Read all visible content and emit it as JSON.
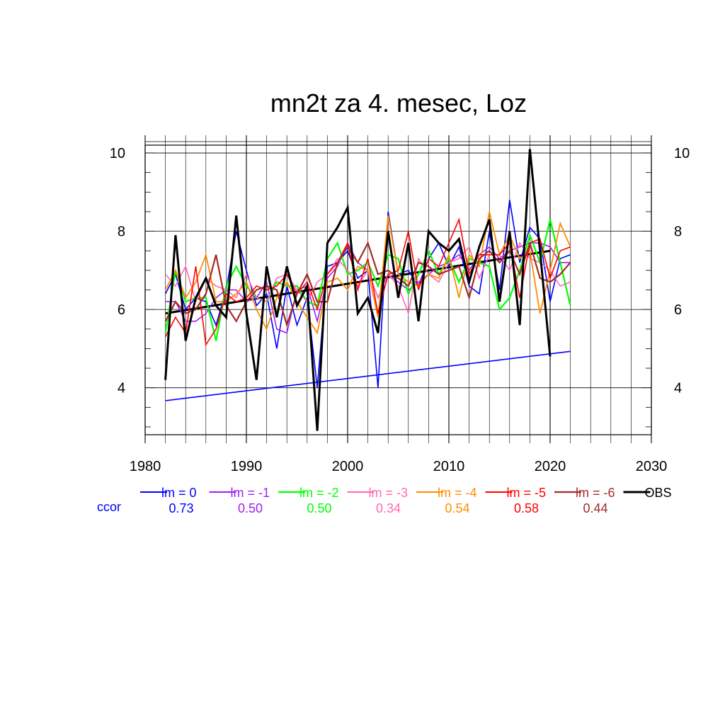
{
  "chart_data": {
    "type": "line",
    "title": "mn2t za 4. mesec, Loz",
    "xlabel": "",
    "ylabel": "",
    "xlim": [
      1980,
      2030
    ],
    "ylim": [
      2.8,
      10.2
    ],
    "x_ticks": [
      1980,
      1990,
      2000,
      2010,
      2020,
      2030
    ],
    "y_ticks": [
      4,
      6,
      8,
      10
    ],
    "grid": true,
    "legend_position": "bottom",
    "ccor_label": "ccor",
    "years": [
      1982,
      1983,
      1984,
      1985,
      1986,
      1987,
      1988,
      1989,
      1990,
      1991,
      1992,
      1993,
      1994,
      1995,
      1996,
      1997,
      1998,
      1999,
      2000,
      2001,
      2002,
      2003,
      2004,
      2005,
      2006,
      2007,
      2008,
      2009,
      2010,
      2011,
      2012,
      2013,
      2014,
      2015,
      2016,
      2017,
      2018,
      2019,
      2020,
      2021,
      2022
    ],
    "series": [
      {
        "name": "lm = 0",
        "color": "#0000ff",
        "width": 1.6,
        "ccor": "0.73",
        "values": [
          6.4,
          6.9,
          6.0,
          6.3,
          6.2,
          5.6,
          6.5,
          8.0,
          7.0,
          6.1,
          6.4,
          5.0,
          6.6,
          5.6,
          6.3,
          4.0,
          7.1,
          7.2,
          7.5,
          6.8,
          7.0,
          4.0,
          8.5,
          6.9,
          7.0,
          6.6,
          7.3,
          7.7,
          7.1,
          7.6,
          6.6,
          6.4,
          8.0,
          6.5,
          8.8,
          7.2,
          8.1,
          7.8,
          6.2,
          7.3,
          7.4
        ]
      },
      {
        "name": "lm = -1",
        "color": "#a020f0",
        "width": 1.6,
        "ccor": "0.50",
        "values": [
          6.2,
          6.2,
          5.7,
          5.7,
          5.9,
          6.3,
          6.5,
          6.5,
          6.2,
          6.3,
          6.7,
          5.5,
          5.4,
          6.5,
          6.6,
          5.7,
          6.8,
          7.1,
          7.7,
          7.2,
          7.0,
          6.3,
          6.9,
          6.7,
          6.5,
          6.7,
          6.9,
          7.1,
          7.2,
          7.4,
          7.0,
          7.4,
          7.6,
          7.3,
          7.5,
          7.6,
          7.7,
          7.7,
          7.6,
          7.2,
          7.2
        ]
      },
      {
        "name": "lm = -2",
        "color": "#00ff00",
        "width": 2.2,
        "ccor": "0.50",
        "values": [
          5.4,
          7.0,
          6.2,
          6.3,
          6.3,
          5.2,
          6.6,
          7.1,
          6.6,
          6.3,
          6.2,
          6.7,
          6.6,
          6.6,
          6.2,
          6.1,
          7.3,
          7.7,
          6.9,
          7.0,
          7.2,
          6.6,
          7.4,
          7.3,
          6.4,
          6.9,
          7.5,
          6.9,
          7.3,
          6.7,
          7.3,
          7.2,
          7.1,
          6.0,
          6.3,
          7.0,
          7.9,
          7.2,
          8.3,
          7.2,
          6.1
        ]
      },
      {
        "name": "lm = -3",
        "color": "#ff69b4",
        "width": 1.6,
        "ccor": "0.34",
        "values": [
          6.9,
          6.6,
          7.1,
          6.2,
          6.8,
          6.6,
          6.5,
          6.3,
          6.9,
          6.3,
          6.2,
          6.8,
          6.9,
          6.5,
          6.2,
          6.7,
          6.9,
          7.3,
          7.0,
          6.6,
          7.0,
          6.3,
          6.9,
          6.6,
          5.9,
          7.3,
          6.9,
          6.7,
          7.2,
          7.3,
          7.6,
          6.8,
          7.4,
          7.4,
          7.0,
          7.7,
          7.3,
          7.2,
          7.0,
          6.6,
          6.7
        ]
      },
      {
        "name": "lm = -4",
        "color": "#ff8c00",
        "width": 1.8,
        "ccor": "0.54",
        "values": [
          6.5,
          7.0,
          6.3,
          6.7,
          7.4,
          6.2,
          6.2,
          6.4,
          6.7,
          6.0,
          5.5,
          6.3,
          6.7,
          6.2,
          5.8,
          5.4,
          6.7,
          6.8,
          6.5,
          7.1,
          7.0,
          5.8,
          8.4,
          6.9,
          6.7,
          6.6,
          6.9,
          6.8,
          7.4,
          6.3,
          7.4,
          7.1,
          8.5,
          7.4,
          7.9,
          7.3,
          7.5,
          5.9,
          7.0,
          8.2,
          7.6
        ]
      },
      {
        "name": "lm = -5",
        "color": "#ff0000",
        "width": 1.6,
        "ccor": "0.58",
        "values": [
          5.3,
          5.8,
          5.4,
          7.1,
          5.1,
          5.5,
          6.4,
          6.2,
          6.3,
          6.6,
          6.5,
          6.6,
          6.9,
          6.4,
          6.7,
          6.0,
          6.9,
          7.2,
          7.7,
          6.5,
          7.3,
          5.9,
          6.9,
          7.0,
          8.0,
          6.5,
          7.3,
          7.1,
          7.7,
          8.3,
          6.9,
          7.4,
          7.4,
          7.4,
          7.7,
          6.3,
          7.7,
          7.8,
          6.8,
          7.5,
          7.6
        ]
      },
      {
        "name": "lm = -6",
        "color": "#a52a2a",
        "width": 2.2,
        "ccor": "0.44",
        "values": [
          5.7,
          6.2,
          5.9,
          6.0,
          6.4,
          7.4,
          6.1,
          5.7,
          6.2,
          6.5,
          6.6,
          6.5,
          5.6,
          6.4,
          6.9,
          6.2,
          6.2,
          7.2,
          7.6,
          7.2,
          7.7,
          6.9,
          7.0,
          6.8,
          6.6,
          7.2,
          7.1,
          6.9,
          7.0,
          7.1,
          6.3,
          7.3,
          7.5,
          7.2,
          7.5,
          6.9,
          7.7,
          6.8,
          6.7,
          6.9,
          7.2
        ]
      },
      {
        "name": "OBS",
        "color": "#000000",
        "width": 3.0,
        "ccor": "",
        "values": [
          4.2,
          7.9,
          5.2,
          6.3,
          6.8,
          6.1,
          5.8,
          8.4,
          5.9,
          4.2,
          7.1,
          5.8,
          7.1,
          6.1,
          6.6,
          2.9,
          7.7,
          8.1,
          8.6,
          5.9,
          6.3,
          5.4,
          8.0,
          6.3,
          7.7,
          5.7,
          8.0,
          7.7,
          7.5,
          7.8,
          6.7,
          7.6,
          8.3,
          6.2,
          8.0,
          5.6,
          10.1,
          7.5,
          4.8,
          null,
          null
        ]
      }
    ],
    "trend_lines": [
      {
        "color": "#000000",
        "width": 3.0,
        "x": [
          1982,
          2020
        ],
        "y": [
          5.9,
          7.5
        ]
      },
      {
        "color": "#0000ff",
        "width": 1.6,
        "x": [
          1982,
          2022
        ],
        "y": [
          3.67,
          4.93
        ]
      }
    ]
  }
}
